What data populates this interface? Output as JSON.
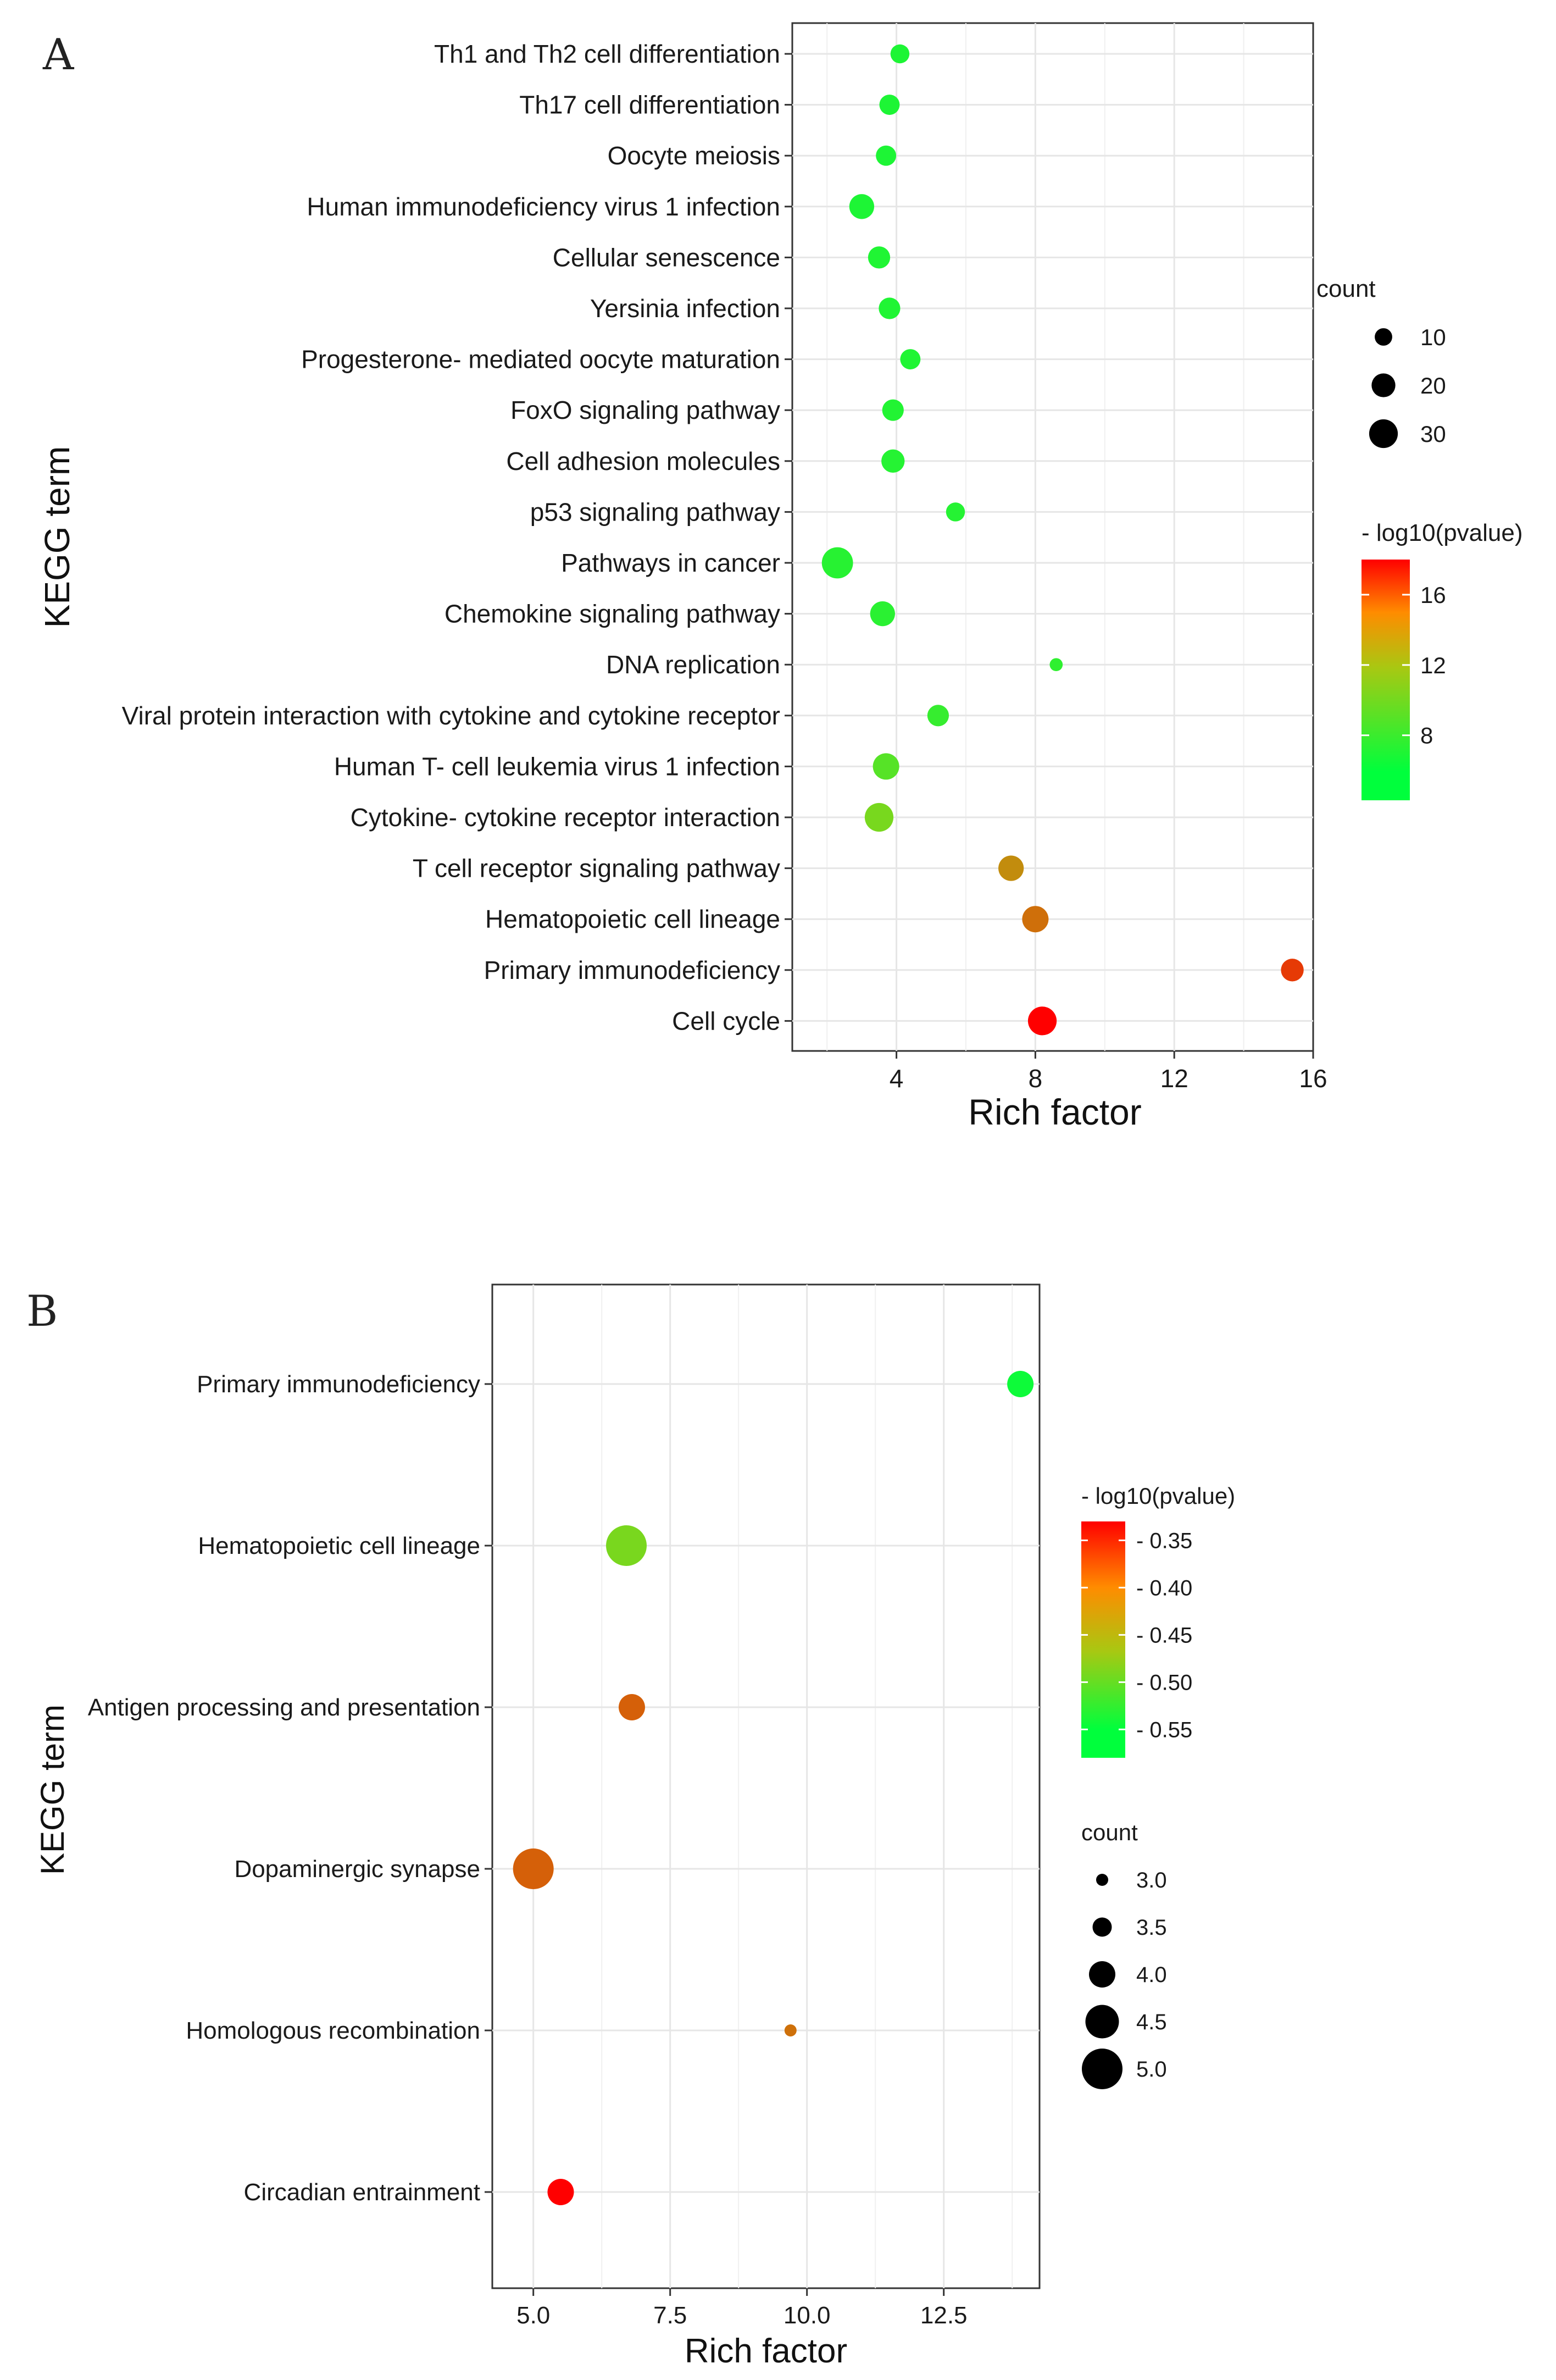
{
  "chart_data": [
    {
      "panel": "A",
      "type": "scatter",
      "title": "",
      "xlabel": "Rich factor",
      "ylabel": "KEGG term",
      "xlim": [
        1,
        16
      ],
      "xticks": [
        4,
        8,
        12,
        16
      ],
      "grid": true,
      "categories": [
        "Th1 and Th2 cell differentiation",
        "Th17 cell differentiation",
        "Oocyte meiosis",
        "Human immunodeficiency virus 1 infection",
        "Cellular senescence",
        "Yersinia infection",
        "Progesterone- mediated oocyte maturation",
        "FoxO signaling pathway",
        "Cell adhesion molecules",
        "p53 signaling pathway",
        "Pathways in cancer",
        "Chemokine signaling pathway",
        "DNA replication",
        "Viral protein interaction with cytokine and cytokine receptor",
        "Human T- cell leukemia virus 1 infection",
        "Cytokine- cytokine receptor interaction",
        "T cell receptor signaling pathway",
        "Hematopoietic cell lineage",
        "Primary immunodeficiency",
        "Cell cycle"
      ],
      "x": [
        4.1,
        3.8,
        3.7,
        3.0,
        3.5,
        3.8,
        4.4,
        3.9,
        3.9,
        5.7,
        2.3,
        3.6,
        8.6,
        5.2,
        3.7,
        3.5,
        7.3,
        8.0,
        15.4,
        8.2
      ],
      "count": [
        12,
        14,
        14,
        22,
        17,
        16,
        14,
        16,
        19,
        12,
        36,
        22,
        5,
        16,
        25,
        30,
        23,
        25,
        18,
        30
      ],
      "neg_log10_pvalue": [
        5.5,
        5.5,
        5.5,
        5.5,
        5.6,
        5.6,
        5.6,
        5.7,
        5.8,
        5.8,
        5.9,
        6.0,
        6.2,
        6.5,
        7.8,
        9.2,
        13.2,
        14.2,
        16.0,
        18.0
      ],
      "size_legend": {
        "title": "count",
        "values": [
          10,
          20,
          30
        ]
      },
      "color_legend": {
        "title": "- log10(pvalue)",
        "ticks": [
          8,
          12,
          16
        ],
        "range": [
          4.3,
          18.0
        ],
        "low_color": "#00ff3c",
        "mid_color": "#a8c812",
        "high_color": "#ff0000"
      }
    },
    {
      "panel": "B",
      "type": "scatter",
      "title": "",
      "xlabel": "Rich factor",
      "ylabel": "KEGG term",
      "xlim": [
        4.25,
        14.25
      ],
      "xticks": [
        5.0,
        7.5,
        10.0,
        12.5
      ],
      "grid": true,
      "categories": [
        "Primary immunodeficiency",
        "Hematopoietic cell lineage",
        "Antigen processing and presentation",
        "Dopaminergic synapse",
        "Homologous recombination",
        "Circadian entrainment"
      ],
      "x": [
        13.9,
        6.7,
        6.8,
        5.0,
        9.7,
        5.5
      ],
      "count": [
        4,
        5,
        4,
        5,
        3,
        4
      ],
      "neg_log10_pvalue": [
        -0.57,
        -0.49,
        -0.39,
        -0.39,
        -0.4,
        -0.33
      ],
      "size_legend": {
        "title": "count",
        "values": [
          "3.0",
          "3.5",
          "4.0",
          "4.5",
          "5.0"
        ]
      },
      "color_legend": {
        "title": "- log10(pvalue)",
        "ticks": [
          "- 0.35",
          "- 0.40",
          "- 0.45",
          "- 0.50",
          "- 0.55"
        ],
        "tick_values": [
          -0.35,
          -0.4,
          -0.45,
          -0.5,
          -0.55
        ],
        "range": [
          -0.33,
          -0.58
        ],
        "low_color": "#00ff3c",
        "mid_color": "#a8c812",
        "high_color": "#ff0000"
      }
    }
  ]
}
